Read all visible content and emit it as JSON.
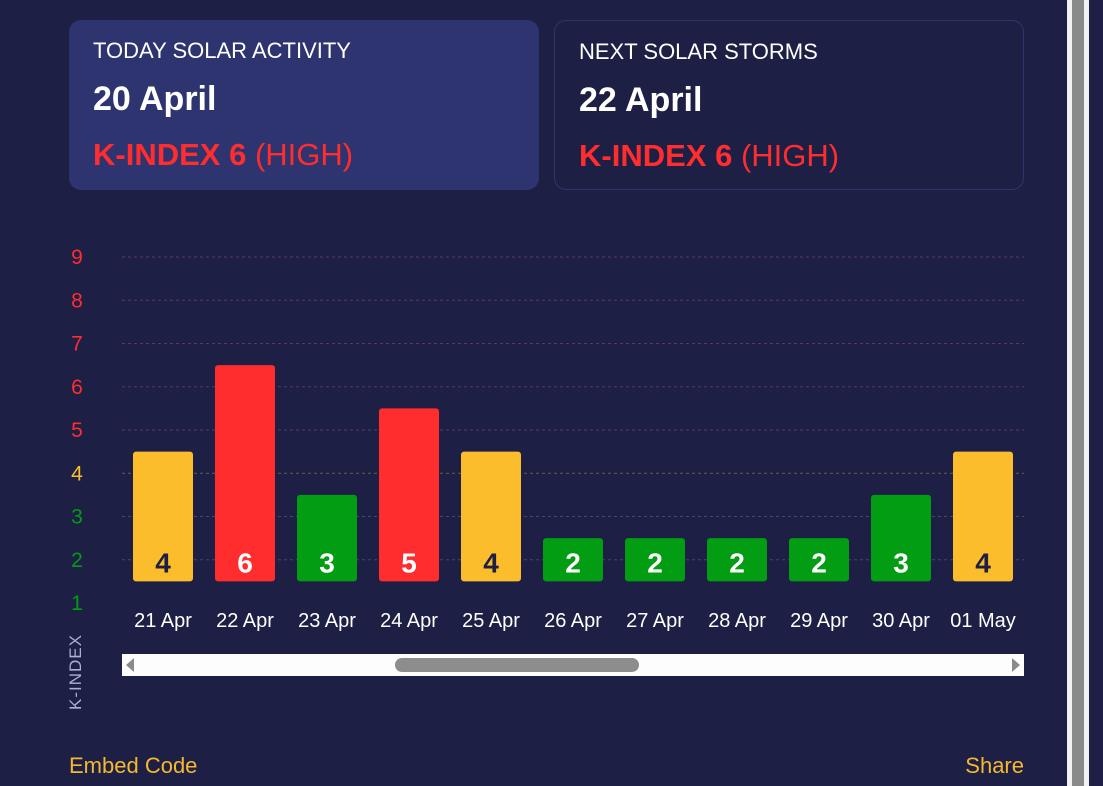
{
  "today": {
    "label": "TODAY SOLAR ACTIVITY",
    "date": "20 April",
    "kindex": "K-INDEX 6",
    "level": "(HIGH)"
  },
  "next": {
    "label": "NEXT SOLAR STORMS",
    "date": "22 April",
    "kindex": "K-INDEX 6",
    "level": "(HIGH)"
  },
  "colors": {
    "background": "#1d1f45",
    "card_active": "#2e3470",
    "high": "#ff2d2d",
    "moderate": "#fbbd2c",
    "low": "#029d12",
    "link": "#f5b82e"
  },
  "chart_data": {
    "type": "bar",
    "categories": [
      "21 Apr",
      "22 Apr",
      "23 Apr",
      "24 Apr",
      "25 Apr",
      "26 Apr",
      "27 Apr",
      "28 Apr",
      "29 Apr",
      "30 Apr",
      "01 May"
    ],
    "values": [
      4,
      6,
      3,
      5,
      4,
      2,
      2,
      2,
      2,
      3,
      4
    ],
    "ylabel": "K-INDEX",
    "ylim": [
      1,
      9
    ],
    "yticks": [
      1,
      2,
      3,
      4,
      5,
      6,
      7,
      8,
      9
    ],
    "grid": true,
    "data_labels": true
  },
  "footer": {
    "embed": "Embed Code",
    "share": "Share"
  }
}
